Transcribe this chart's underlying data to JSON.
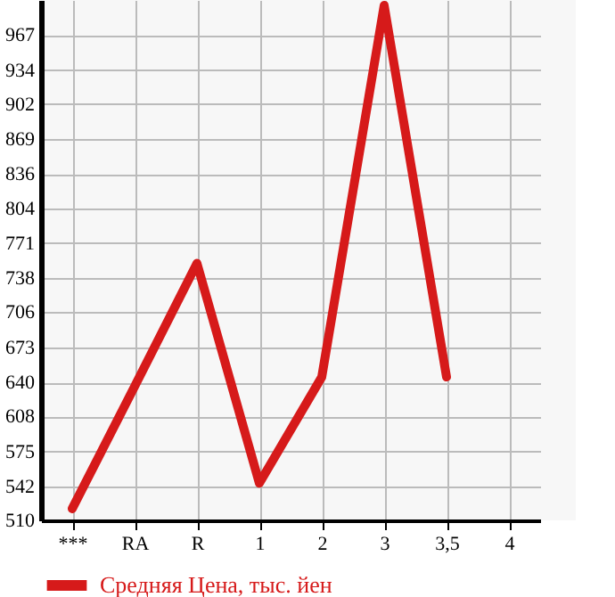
{
  "chart_data": {
    "type": "line",
    "categories": [
      "***",
      "RA",
      "R",
      "1",
      "2",
      "3",
      "3,5",
      "4"
    ],
    "series": [
      {
        "name": "Средняя Цена, тыс. йен",
        "color": "#d61a1a",
        "values": [
          521,
          636,
          752,
          545,
          645,
          995,
          645,
          null
        ]
      }
    ],
    "ylim": [
      510,
      1000
    ],
    "yticks": [
      510,
      542,
      575,
      608,
      640,
      673,
      706,
      738,
      771,
      804,
      836,
      869,
      902,
      934,
      967
    ],
    "grid": true,
    "legend": "bottom",
    "marker": "none",
    "line_style": "solid"
  }
}
